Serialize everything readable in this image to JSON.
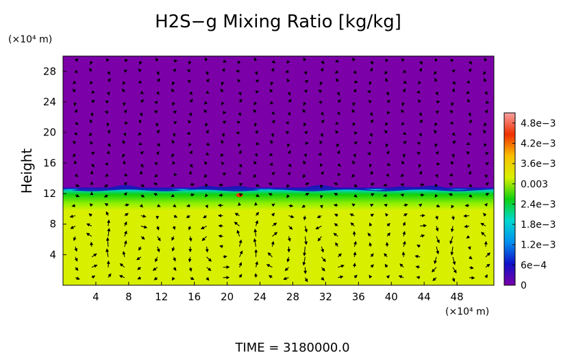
{
  "chart_data": {
    "type": "heatmap",
    "title": "H2S−g Mixing Ratio [kg/kg]",
    "ylabel": "Height",
    "x_unit": "(×10⁴ m)",
    "y_unit": "(×10⁴ m)",
    "xlim": [
      0,
      52.5
    ],
    "ylim": [
      0,
      30
    ],
    "x_ticks": [
      "4",
      "8",
      "12",
      "16",
      "20",
      "24",
      "28",
      "32",
      "36",
      "40",
      "44",
      "48"
    ],
    "y_ticks": [
      "4",
      "8",
      "12",
      "16",
      "20",
      "24",
      "28"
    ],
    "colorbar": {
      "vmin": 0,
      "vmax": 0.0051,
      "tick_values": [
        0,
        0.0006,
        0.0012,
        0.0018,
        0.0024,
        0.003,
        0.0036,
        0.0042,
        0.0048
      ],
      "tick_labels": [
        "0",
        "6e−4",
        "1.2e−3",
        "1.8e−3",
        "2.4e−3",
        "0.003",
        "3.6e−3",
        "4.2e−3",
        "4.8e−3"
      ],
      "colors": [
        "#7b00a8",
        "#1010c8",
        "#0090f0",
        "#00d8d0",
        "#10d010",
        "#d8f000",
        "#f8c000",
        "#f03000",
        "#f8a0a0"
      ]
    },
    "field": {
      "lower_layer_top": 12.5,
      "lower_layer_value": 0.0033,
      "upper_layer_value": 0.0,
      "hotspot": {
        "x": 21.5,
        "y": 11.8,
        "value": 0.0042
      }
    },
    "circulation_cells_x": [
      3.5,
      8,
      19.5,
      27,
      32,
      44.5,
      49
    ],
    "time_label": "TIME  =  3180000.0"
  }
}
